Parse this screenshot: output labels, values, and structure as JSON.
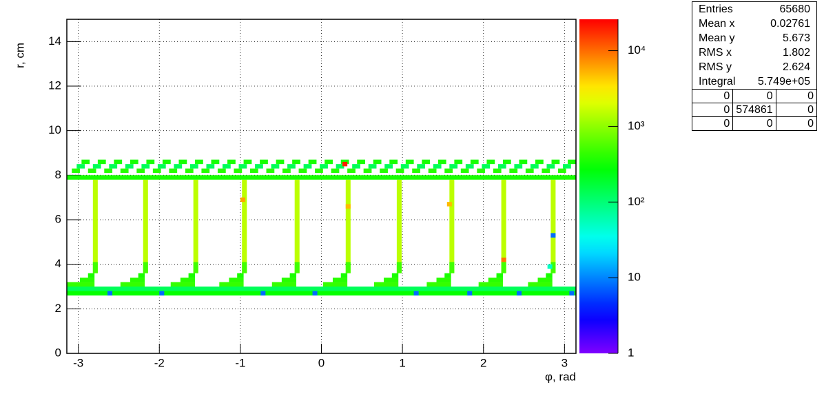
{
  "chart_data": {
    "type": "heatmap",
    "x_label": "φ, rad",
    "y_label": "r, cm",
    "xlim": [
      -3.1416,
      3.1416
    ],
    "ylim": [
      0,
      15
    ],
    "xticks": [
      -3,
      -2,
      -1,
      0,
      1,
      2,
      3
    ],
    "yticks": [
      0,
      2,
      4,
      6,
      8,
      10,
      12,
      14
    ],
    "grid": true,
    "z_log": true,
    "palette": "rainbow",
    "zlim": [
      1,
      26000
    ],
    "zticks": [
      1,
      10,
      {
        "value": 100,
        "label": "10²"
      },
      {
        "value": 1000,
        "label": "10³"
      },
      {
        "value": 10000,
        "label": "10⁴"
      }
    ],
    "rows": [
      {
        "y0": 2.6,
        "y1": 2.8,
        "runs": [
          [
            -3.14,
            3.14,
            300
          ],
          [
            -2.64,
            -2.58,
            8
          ],
          [
            -2.0,
            -1.94,
            8
          ],
          [
            -0.75,
            -0.69,
            8
          ],
          [
            -0.11,
            -0.05,
            8
          ],
          [
            1.14,
            1.2,
            8
          ],
          [
            1.8,
            1.86,
            8
          ],
          [
            2.41,
            2.47,
            8
          ],
          [
            3.06,
            3.12,
            8
          ]
        ]
      },
      {
        "y0": 2.8,
        "y1": 3.0,
        "runs": [
          [
            -3.14,
            3.14,
            130
          ]
        ]
      },
      {
        "y0": 3.0,
        "y1": 3.2,
        "runs": [
          [
            -3.14,
            -2.8,
            450
          ],
          [
            -2.48,
            -2.18,
            450
          ],
          [
            -1.86,
            -1.56,
            450
          ],
          [
            -1.26,
            -0.96,
            450
          ],
          [
            -0.61,
            -0.31,
            450
          ],
          [
            0.02,
            0.32,
            450
          ],
          [
            0.65,
            0.95,
            450
          ],
          [
            1.3,
            1.6,
            450
          ],
          [
            1.94,
            2.24,
            450
          ],
          [
            2.55,
            2.85,
            450
          ]
        ]
      },
      {
        "y0": 3.2,
        "y1": 3.4,
        "runs": [
          [
            -2.98,
            -2.8,
            400
          ],
          [
            -2.36,
            -2.18,
            400
          ],
          [
            -1.74,
            -1.56,
            400
          ],
          [
            -1.14,
            -0.96,
            400
          ],
          [
            -0.49,
            -0.31,
            400
          ],
          [
            0.14,
            0.32,
            400
          ],
          [
            0.77,
            0.95,
            400
          ],
          [
            1.42,
            1.6,
            400
          ],
          [
            2.06,
            2.24,
            400
          ],
          [
            2.67,
            2.85,
            400
          ]
        ]
      },
      {
        "y0": 3.4,
        "y1": 3.6,
        "runs": [
          [
            -2.88,
            -2.8,
            350
          ],
          [
            -2.26,
            -2.18,
            350
          ],
          [
            -1.64,
            -1.56,
            350
          ],
          [
            -1.04,
            -0.96,
            350
          ],
          [
            -0.39,
            -0.31,
            350
          ],
          [
            0.24,
            0.32,
            350
          ],
          [
            0.87,
            0.95,
            350
          ],
          [
            1.52,
            1.6,
            350
          ],
          [
            2.16,
            2.24,
            350
          ],
          [
            2.77,
            2.85,
            350
          ]
        ]
      },
      {
        "y0": 3.6,
        "y1": 7.8,
        "runs": [
          [
            -2.82,
            -2.76,
            1500
          ],
          [
            -2.2,
            -2.14,
            1500
          ],
          [
            -1.58,
            -1.52,
            1500
          ],
          [
            -0.98,
            -0.92,
            1500
          ],
          [
            -0.33,
            -0.27,
            1500
          ],
          [
            0.3,
            0.36,
            1500
          ],
          [
            0.93,
            0.99,
            1500
          ],
          [
            1.58,
            1.64,
            1500
          ],
          [
            2.22,
            2.28,
            1500
          ],
          [
            2.83,
            2.89,
            1500
          ]
        ]
      },
      {
        "y0": 3.6,
        "y1": 4.1,
        "runs": [
          [
            -2.82,
            -2.76,
            500
          ],
          [
            -2.2,
            -2.14,
            500
          ],
          [
            -1.58,
            -1.52,
            500
          ],
          [
            -0.98,
            -0.92,
            500
          ],
          [
            -0.33,
            -0.27,
            500
          ],
          [
            0.3,
            0.36,
            500
          ],
          [
            0.93,
            0.99,
            500
          ],
          [
            1.58,
            1.64,
            500
          ],
          [
            2.22,
            2.28,
            500
          ],
          [
            2.83,
            2.89,
            500
          ]
        ]
      },
      {
        "y0": 7.8,
        "y1": 8.0,
        "runs": [
          [
            -3.14,
            3.14,
            350
          ]
        ]
      },
      {
        "y0": 8.1,
        "y1": 8.3,
        "runs": [
          [
            -3.08,
            -2.98,
            400
          ],
          [
            -2.88,
            -2.78,
            400
          ],
          [
            -2.68,
            -2.58,
            400
          ],
          [
            -2.48,
            -2.38,
            400
          ],
          [
            -2.28,
            -2.18,
            400
          ],
          [
            -2.08,
            -1.98,
            400
          ],
          [
            -1.88,
            -1.78,
            400
          ],
          [
            -1.68,
            -1.58,
            400
          ],
          [
            -1.48,
            -1.38,
            400
          ],
          [
            -1.28,
            -1.18,
            400
          ],
          [
            -1.08,
            -0.98,
            400
          ],
          [
            -0.88,
            -0.78,
            400
          ],
          [
            -0.68,
            -0.58,
            400
          ],
          [
            -0.48,
            -0.38,
            400
          ],
          [
            -0.28,
            -0.18,
            400
          ],
          [
            -0.08,
            0.02,
            400
          ],
          [
            0.12,
            0.22,
            400
          ],
          [
            0.32,
            0.42,
            400
          ],
          [
            0.52,
            0.62,
            400
          ],
          [
            0.72,
            0.82,
            400
          ],
          [
            0.92,
            1.02,
            400
          ],
          [
            1.12,
            1.22,
            400
          ],
          [
            1.32,
            1.42,
            400
          ],
          [
            1.52,
            1.62,
            400
          ],
          [
            1.72,
            1.82,
            400
          ],
          [
            1.92,
            2.02,
            400
          ],
          [
            2.12,
            2.22,
            400
          ],
          [
            2.32,
            2.42,
            400
          ],
          [
            2.52,
            2.62,
            400
          ],
          [
            2.72,
            2.82,
            400
          ],
          [
            2.92,
            3.02,
            400
          ]
        ]
      },
      {
        "y0": 8.3,
        "y1": 8.5,
        "runs": [
          [
            -3.02,
            -2.92,
            130
          ],
          [
            -2.82,
            -2.72,
            130
          ],
          [
            -2.62,
            -2.52,
            130
          ],
          [
            -2.42,
            -2.32,
            130
          ],
          [
            -2.22,
            -2.12,
            130
          ],
          [
            -2.02,
            -1.92,
            130
          ],
          [
            -1.82,
            -1.72,
            130
          ],
          [
            -1.62,
            -1.52,
            130
          ],
          [
            -1.42,
            -1.32,
            130
          ],
          [
            -1.22,
            -1.12,
            130
          ],
          [
            -1.02,
            -0.92,
            130
          ],
          [
            -0.82,
            -0.72,
            130
          ],
          [
            -0.62,
            -0.52,
            130
          ],
          [
            -0.42,
            -0.32,
            130
          ],
          [
            -0.22,
            -0.12,
            130
          ],
          [
            -0.02,
            0.08,
            130
          ],
          [
            0.18,
            0.28,
            130
          ],
          [
            0.38,
            0.48,
            130
          ],
          [
            0.58,
            0.68,
            130
          ],
          [
            0.78,
            0.88,
            130
          ],
          [
            0.98,
            1.08,
            130
          ],
          [
            1.18,
            1.28,
            130
          ],
          [
            1.38,
            1.48,
            130
          ],
          [
            1.58,
            1.68,
            130
          ],
          [
            1.78,
            1.88,
            130
          ],
          [
            1.98,
            2.08,
            130
          ],
          [
            2.18,
            2.28,
            130
          ],
          [
            2.38,
            2.48,
            130
          ],
          [
            2.58,
            2.68,
            130
          ],
          [
            2.78,
            2.88,
            130
          ],
          [
            2.98,
            3.08,
            130
          ]
        ]
      },
      {
        "y0": 8.5,
        "y1": 8.7,
        "runs": [
          [
            -2.96,
            -2.86,
            350
          ],
          [
            -2.76,
            -2.66,
            350
          ],
          [
            -2.56,
            -2.46,
            350
          ],
          [
            -2.36,
            -2.26,
            350
          ],
          [
            -2.16,
            -2.06,
            350
          ],
          [
            -1.96,
            -1.86,
            350
          ],
          [
            -1.76,
            -1.66,
            350
          ],
          [
            -1.56,
            -1.46,
            350
          ],
          [
            -1.36,
            -1.26,
            350
          ],
          [
            -1.16,
            -1.06,
            350
          ],
          [
            -0.96,
            -0.86,
            350
          ],
          [
            -0.76,
            -0.66,
            350
          ],
          [
            -0.56,
            -0.46,
            350
          ],
          [
            -0.36,
            -0.26,
            350
          ],
          [
            -0.16,
            -0.06,
            350
          ],
          [
            0.04,
            0.14,
            350
          ],
          [
            0.24,
            0.34,
            350
          ],
          [
            0.44,
            0.54,
            350
          ],
          [
            0.64,
            0.74,
            350
          ],
          [
            0.84,
            0.94,
            350
          ],
          [
            1.04,
            1.14,
            350
          ],
          [
            1.24,
            1.34,
            350
          ],
          [
            1.44,
            1.54,
            350
          ],
          [
            1.64,
            1.74,
            350
          ],
          [
            1.84,
            1.94,
            350
          ],
          [
            2.04,
            2.14,
            350
          ],
          [
            2.24,
            2.34,
            350
          ],
          [
            2.44,
            2.54,
            350
          ],
          [
            2.64,
            2.74,
            350
          ],
          [
            2.84,
            2.94,
            350
          ],
          [
            3.04,
            3.14,
            350
          ]
        ]
      },
      {
        "y0": 6.8,
        "y1": 7.0,
        "runs": [
          [
            -1.0,
            -0.94,
            6000
          ]
        ]
      },
      {
        "y0": 6.6,
        "y1": 6.8,
        "runs": [
          [
            1.55,
            1.61,
            5000
          ]
        ]
      },
      {
        "y0": 6.5,
        "y1": 6.7,
        "runs": [
          [
            0.3,
            0.36,
            5000
          ]
        ]
      },
      {
        "y0": 4.1,
        "y1": 4.3,
        "runs": [
          [
            2.22,
            2.28,
            9000
          ]
        ]
      },
      {
        "y0": 8.4,
        "y1": 8.6,
        "runs": [
          [
            0.26,
            0.32,
            20000
          ]
        ]
      },
      {
        "y0": 5.2,
        "y1": 5.4,
        "runs": [
          [
            2.83,
            2.89,
            8
          ]
        ]
      },
      {
        "y0": 3.8,
        "y1": 4.0,
        "runs": [
          [
            2.79,
            2.85,
            50
          ]
        ]
      }
    ],
    "stats": {
      "rows": [
        [
          "Entries",
          65680
        ],
        [
          "Mean x",
          0.02761
        ],
        [
          "Mean y",
          5.673
        ],
        [
          "RMS x",
          1.802
        ],
        [
          "RMS y",
          2.624
        ],
        [
          "Integral",
          "5.749e+05"
        ]
      ],
      "grid": [
        [
          0,
          0,
          0
        ],
        [
          0,
          574861,
          0
        ],
        [
          0,
          0,
          0
        ]
      ]
    }
  }
}
